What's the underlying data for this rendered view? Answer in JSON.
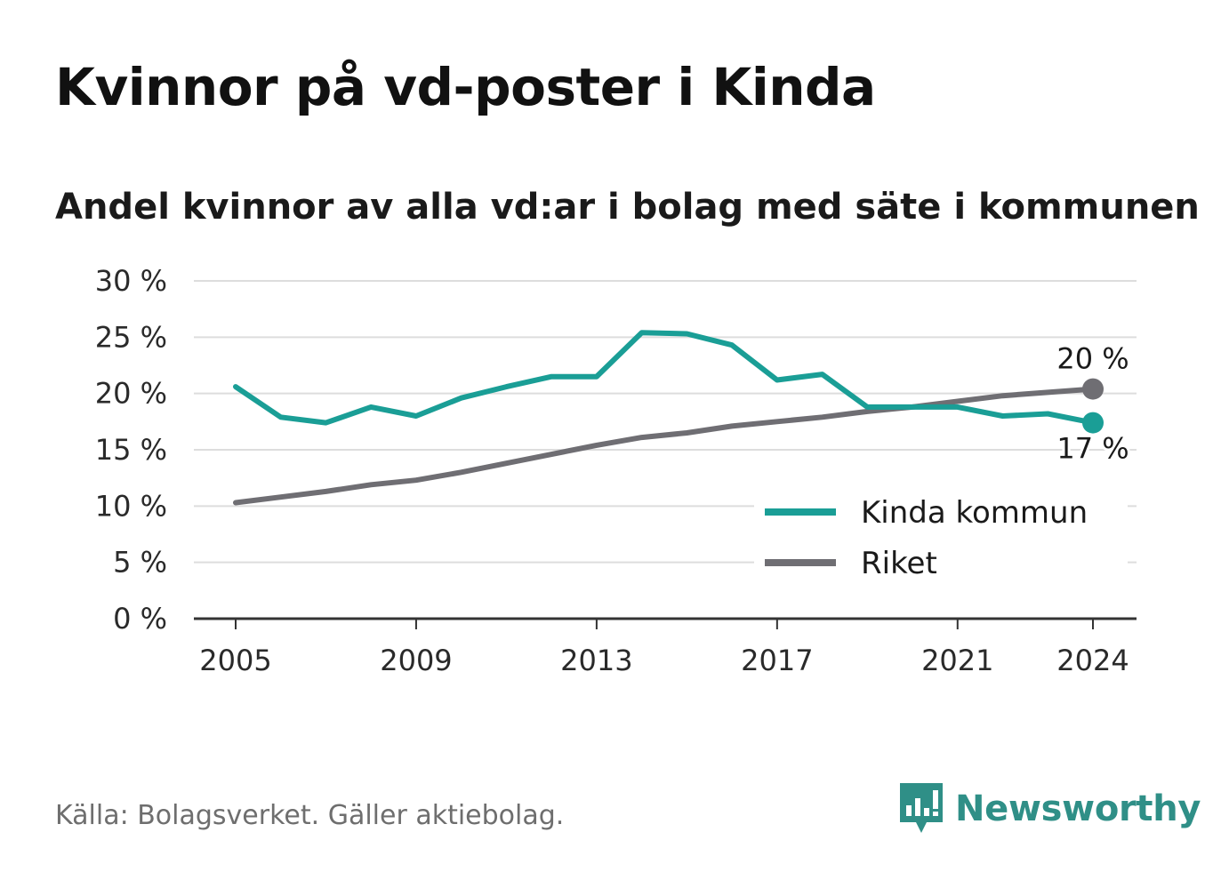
{
  "header": {
    "title": "Kvinnor på vd-poster i Kinda",
    "subtitle": "Andel kvinnor av alla vd:ar i bolag med säte i kommunen"
  },
  "chart_data": {
    "type": "line",
    "x": [
      2005,
      2006,
      2007,
      2008,
      2009,
      2010,
      2011,
      2012,
      2013,
      2014,
      2015,
      2016,
      2017,
      2018,
      2019,
      2020,
      2021,
      2022,
      2023,
      2024
    ],
    "series": [
      {
        "name": "Kinda kommun",
        "color": "#1a9e96",
        "values": [
          20.6,
          17.9,
          17.4,
          18.8,
          18.0,
          19.6,
          20.6,
          21.5,
          21.5,
          25.4,
          25.3,
          24.3,
          21.2,
          21.7,
          18.8,
          18.8,
          18.8,
          18.0,
          18.2,
          17.4
        ],
        "end_label": "17 %"
      },
      {
        "name": "Riket",
        "color": "#6f6e73",
        "values": [
          10.3,
          10.8,
          11.3,
          11.9,
          12.3,
          13.0,
          13.8,
          14.6,
          15.4,
          16.1,
          16.5,
          17.1,
          17.5,
          17.9,
          18.4,
          18.8,
          19.3,
          19.8,
          20.1,
          20.4
        ],
        "end_label": "20 %"
      }
    ],
    "ylim": [
      0,
      30
    ],
    "y_ticks": [
      0,
      5,
      10,
      15,
      20,
      25,
      30
    ],
    "y_tick_labels": [
      "0 %",
      "5 %",
      "10 %",
      "15 %",
      "20 %",
      "25 %",
      "30 %"
    ],
    "x_ticks": [
      2005,
      2009,
      2013,
      2017,
      2021,
      2024
    ],
    "x_tick_labels": [
      "2005",
      "2009",
      "2013",
      "2017",
      "2021",
      "2024"
    ],
    "grid": true,
    "legend_position": "bottom-right"
  },
  "footer": {
    "source": "Källa: Bolagsverket. Gäller aktiebolag.",
    "brand": "Newsworthy",
    "brand_color": "#2f8f87"
  }
}
